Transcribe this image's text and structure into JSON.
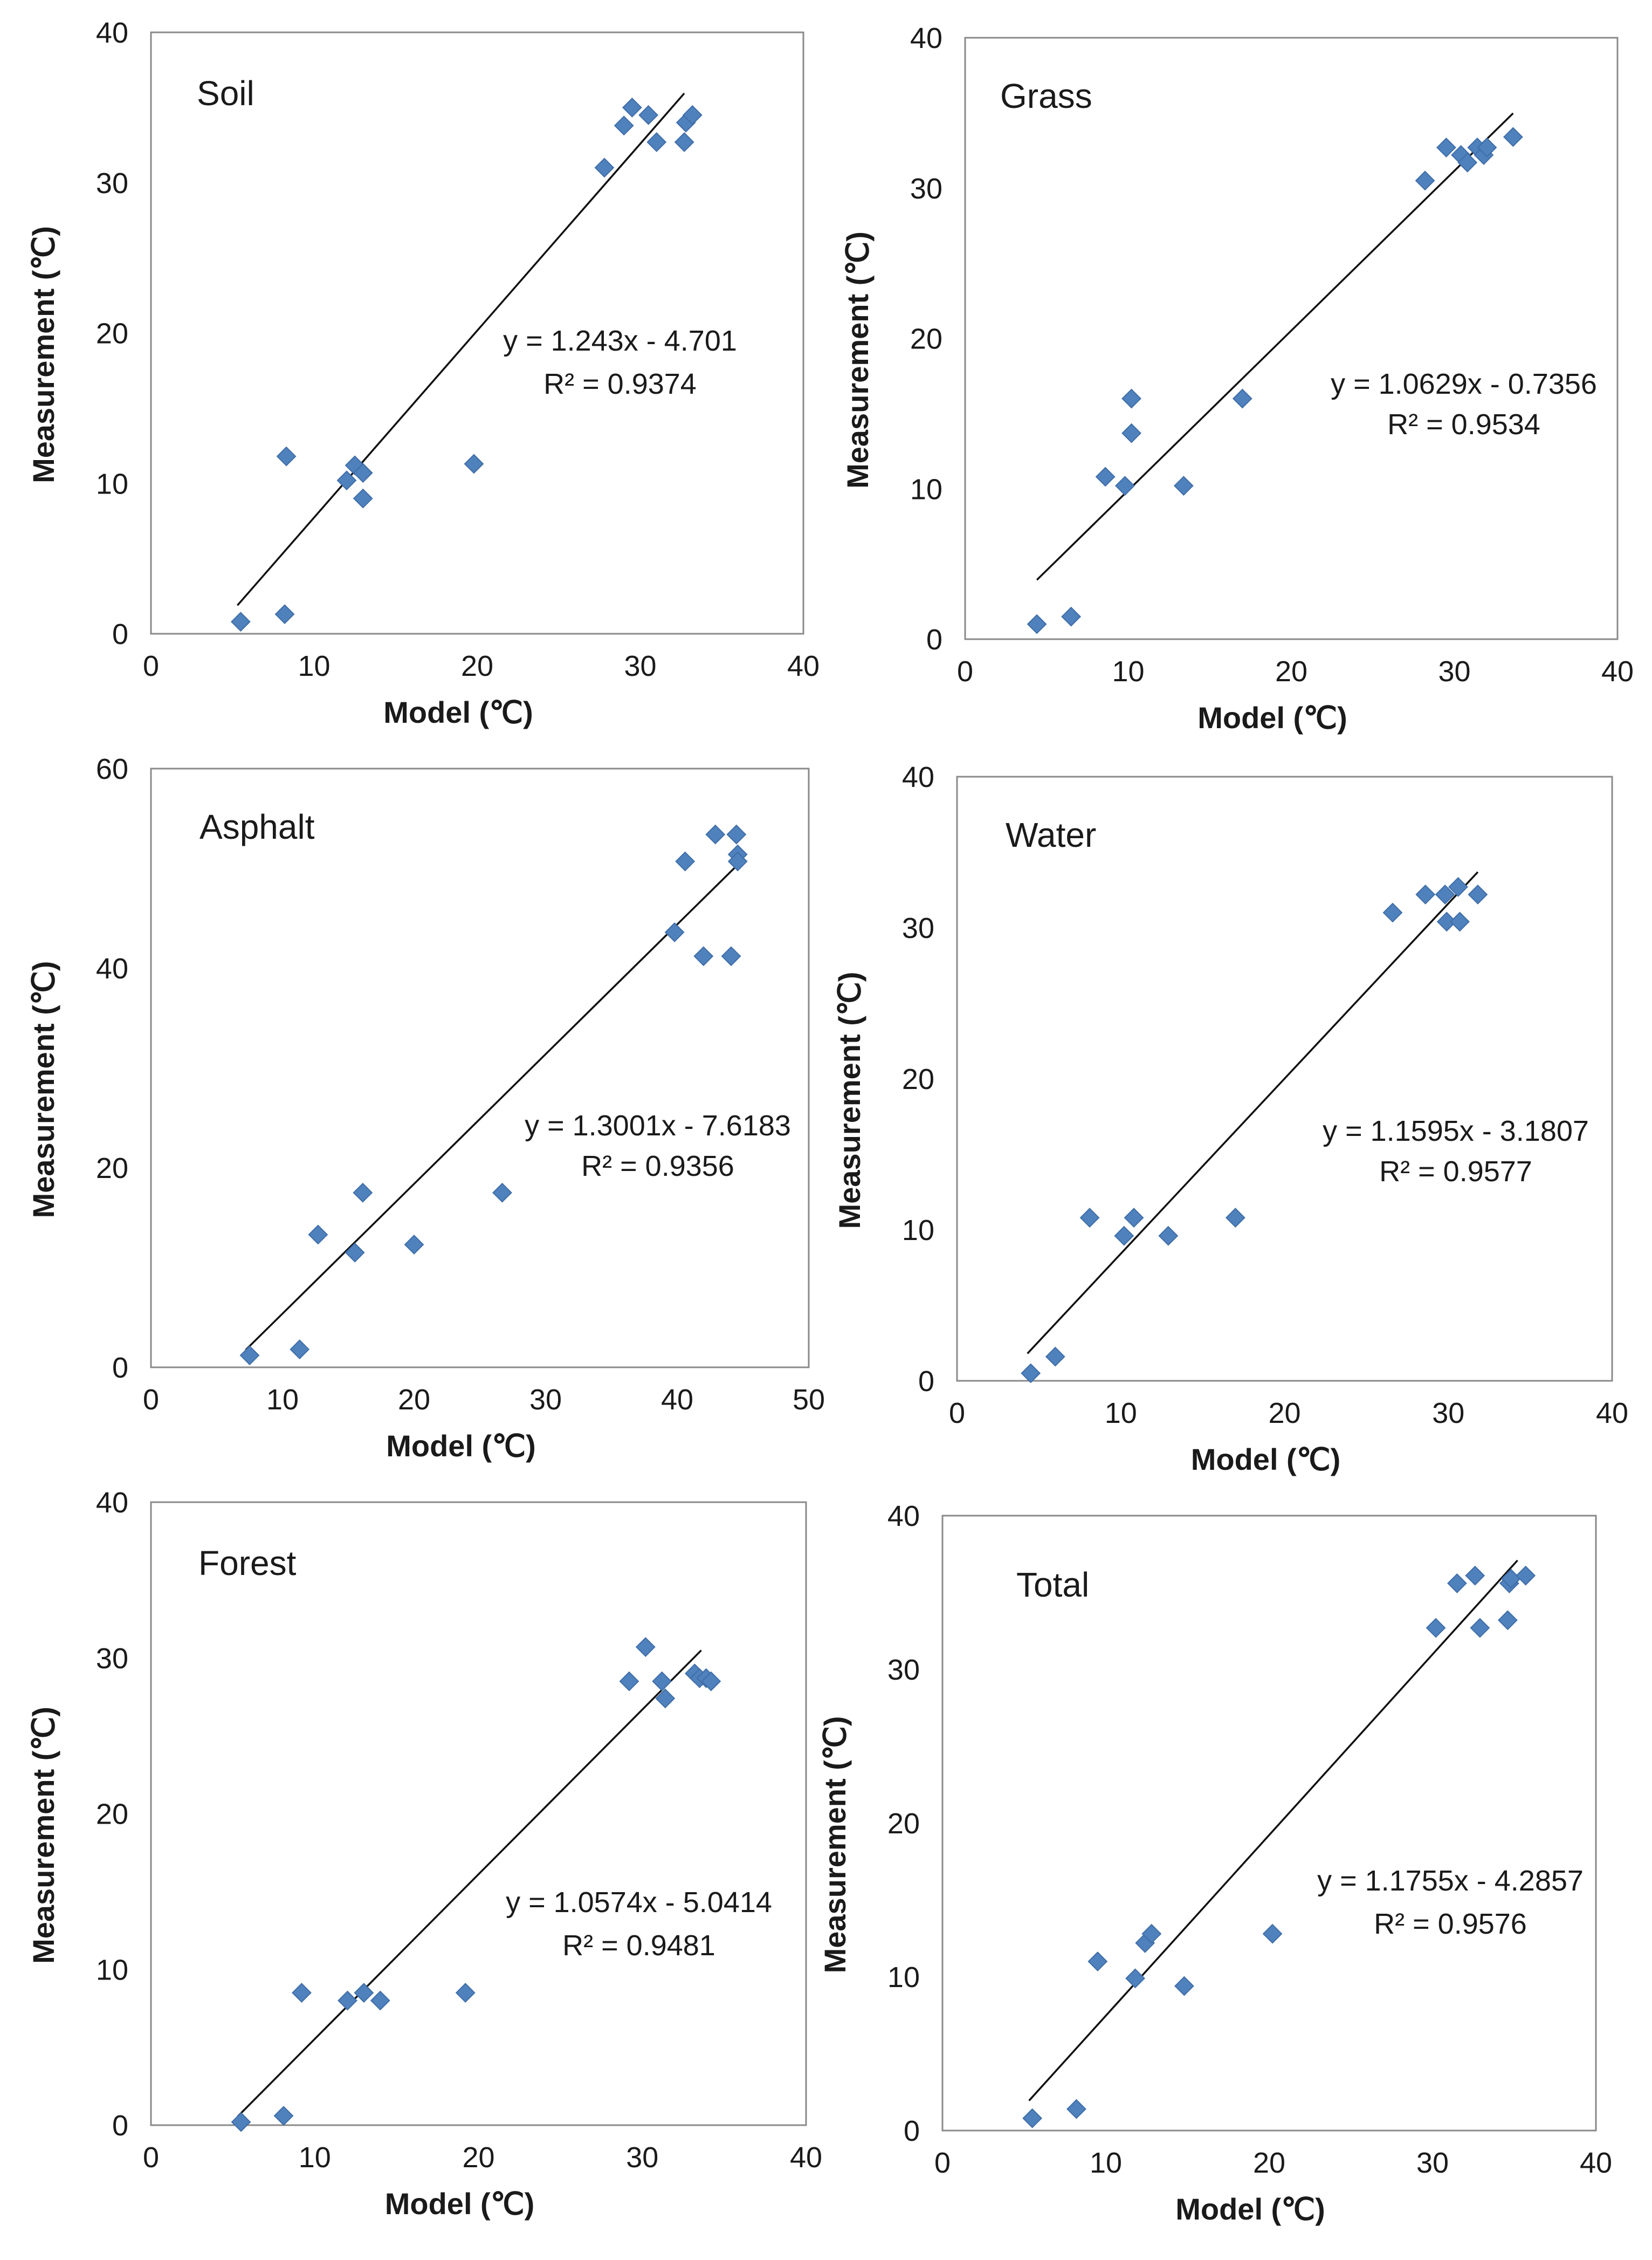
{
  "chart_data": [
    {
      "type": "scatter",
      "title": "Soil",
      "xlabel": "Model (℃)",
      "ylabel": "Measurement (℃)",
      "xlim": [
        0,
        40
      ],
      "ylim": [
        0,
        40
      ],
      "xticks": [
        "0",
        "10",
        "20",
        "30",
        "40"
      ],
      "yticks": [
        "0",
        "10",
        "20",
        "30",
        "40"
      ],
      "points": [
        [
          5.5,
          0.8
        ],
        [
          8.2,
          1.3
        ],
        [
          8.3,
          11.8
        ],
        [
          12,
          10.2
        ],
        [
          12.5,
          11.2
        ],
        [
          13,
          10.7
        ],
        [
          13,
          9
        ],
        [
          19.8,
          11.3
        ],
        [
          27.8,
          31
        ],
        [
          29,
          33.8
        ],
        [
          29.5,
          35
        ],
        [
          30.5,
          34.5
        ],
        [
          31,
          32.7
        ],
        [
          32.7,
          32.7
        ],
        [
          32.8,
          34
        ],
        [
          33.2,
          34.5
        ]
      ],
      "trendline": {
        "slope": 1.243,
        "intercept": -4.701,
        "x_range": [
          5.3,
          32.7
        ]
      },
      "equation": "y = 1.243x - 4.701",
      "r2": "R² = 0.9374"
    },
    {
      "type": "scatter",
      "title": "Grass",
      "xlabel": "Model  (℃)",
      "ylabel": "Measurement (℃)",
      "xlim": [
        0,
        40
      ],
      "ylim": [
        0,
        40
      ],
      "xticks": [
        "0",
        "10",
        "20",
        "30",
        "40"
      ],
      "yticks": [
        "0",
        "10",
        "20",
        "30",
        "40"
      ],
      "points": [
        [
          4.4,
          1
        ],
        [
          6.5,
          1.5
        ],
        [
          8.6,
          10.8
        ],
        [
          9.8,
          10.2
        ],
        [
          10.2,
          16
        ],
        [
          10.2,
          13.7
        ],
        [
          13.4,
          10.2
        ],
        [
          17,
          16
        ],
        [
          28.2,
          30.5
        ],
        [
          29.5,
          32.7
        ],
        [
          30.4,
          32.2
        ],
        [
          30.8,
          31.7
        ],
        [
          31.4,
          32.7
        ],
        [
          31.8,
          32.2
        ],
        [
          32,
          32.7
        ],
        [
          33.6,
          33.4
        ]
      ],
      "trendline": {
        "slope": 1.0629,
        "intercept": -0.7356,
        "x_range": [
          4.4,
          33.6
        ]
      },
      "equation": "y = 1.0629x - 0.7356",
      "r2": "R² = 0.9534"
    },
    {
      "type": "scatter",
      "title": "Asphalt",
      "xlabel": "Model (℃)",
      "ylabel": "Measurement (℃)",
      "xlim": [
        0,
        50
      ],
      "ylim": [
        0,
        60
      ],
      "xticks": [
        "0",
        "10",
        "20",
        "30",
        "40",
        "50"
      ],
      "yticks": [
        "0",
        "20",
        "40",
        "60"
      ],
      "points": [
        [
          7.5,
          1.2
        ],
        [
          11.3,
          1.8
        ],
        [
          12.7,
          13.3
        ],
        [
          15.5,
          11.5
        ],
        [
          16.1,
          17.5
        ],
        [
          20,
          12.3
        ],
        [
          26.7,
          17.5
        ],
        [
          39.8,
          43.6
        ],
        [
          40.6,
          50.7
        ],
        [
          42,
          41.2
        ],
        [
          42.9,
          53.4
        ],
        [
          44.1,
          41.2
        ],
        [
          44.5,
          53.4
        ],
        [
          44.6,
          51.4
        ],
        [
          44.6,
          50.7
        ]
      ],
      "trendline": {
        "slope": 1.3001,
        "intercept": -7.6183,
        "x_range": [
          7.2,
          44.5
        ]
      },
      "equation": "y = 1.3001x - 7.6183",
      "r2": "R² = 0.9356"
    },
    {
      "type": "scatter",
      "title": "Water",
      "xlabel": "Model  (℃)",
      "ylabel": "Measurement  (℃)",
      "xlim": [
        0,
        40
      ],
      "ylim": [
        0,
        40
      ],
      "xticks": [
        "0",
        "10",
        "20",
        "30",
        "40"
      ],
      "yticks": [
        "0",
        "10",
        "20",
        "30",
        "40"
      ],
      "points": [
        [
          4.5,
          0.5
        ],
        [
          6,
          1.6
        ],
        [
          8.1,
          10.8
        ],
        [
          10.2,
          9.6
        ],
        [
          10.8,
          10.8
        ],
        [
          12.9,
          9.6
        ],
        [
          17,
          10.8
        ],
        [
          26.6,
          31
        ],
        [
          28.6,
          32.2
        ],
        [
          29.8,
          32.2
        ],
        [
          29.9,
          30.4
        ],
        [
          30.6,
          32.7
        ],
        [
          30.7,
          30.4
        ],
        [
          31.8,
          32.2
        ]
      ],
      "trendline": {
        "slope": 1.1595,
        "intercept": -3.1807,
        "x_range": [
          4.3,
          31.8
        ]
      },
      "equation": "y = 1.1595x - 3.1807",
      "r2": "R² = 0.9577"
    },
    {
      "type": "scatter",
      "title": "Forest",
      "xlabel": "Model  (℃)",
      "ylabel": "Measurement  (℃)",
      "xlim": [
        0,
        40
      ],
      "ylim": [
        0,
        40
      ],
      "xticks": [
        "0",
        "10",
        "20",
        "30",
        "40"
      ],
      "yticks": [
        "0",
        "10",
        "20",
        "30",
        "40"
      ],
      "points": [
        [
          5.5,
          0.2
        ],
        [
          8.1,
          0.6
        ],
        [
          9.2,
          8.5
        ],
        [
          12,
          8
        ],
        [
          13,
          8.5
        ],
        [
          14,
          8
        ],
        [
          19.2,
          8.5
        ],
        [
          29.2,
          28.5
        ],
        [
          30.2,
          30.7
        ],
        [
          31.2,
          28.5
        ],
        [
          31.4,
          27.4
        ],
        [
          33.2,
          29
        ],
        [
          33.5,
          28.7
        ],
        [
          33.9,
          28.7
        ],
        [
          34.2,
          28.5
        ]
      ],
      "trendline": {
        "slope": 1.0574,
        "intercept": -5.0414,
        "x_range": [
          5.3,
          33.6
        ]
      },
      "equation": "y = 1.0574x - 5.0414",
      "r2": "R² = 0.9481"
    },
    {
      "type": "scatter",
      "title": "Total",
      "xlabel": "Model  (℃)",
      "ylabel": "Measurement (℃)",
      "xlim": [
        0,
        40
      ],
      "ylim": [
        0,
        40
      ],
      "xticks": [
        "0",
        "10",
        "20",
        "30",
        "40"
      ],
      "yticks": [
        "0",
        "10",
        "20",
        "30",
        "40"
      ],
      "points": [
        [
          5.5,
          0.8
        ],
        [
          8.2,
          1.4
        ],
        [
          9.5,
          11
        ],
        [
          11.8,
          9.9
        ],
        [
          12.4,
          12.2
        ],
        [
          12.8,
          12.8
        ],
        [
          14.8,
          9.4
        ],
        [
          20.2,
          12.8
        ],
        [
          30.2,
          32.7
        ],
        [
          31.5,
          35.6
        ],
        [
          32.6,
          36.1
        ],
        [
          32.9,
          32.7
        ],
        [
          34.6,
          33.2
        ],
        [
          34.7,
          35.6
        ],
        [
          34.8,
          35.9
        ],
        [
          35.7,
          36.1
        ]
      ],
      "trendline": {
        "slope": 1.1755,
        "intercept": -4.2857,
        "x_range": [
          5.3,
          35.2
        ]
      },
      "equation": "y = 1.1755x - 4.2857",
      "r2": "R² = 0.9576"
    }
  ]
}
